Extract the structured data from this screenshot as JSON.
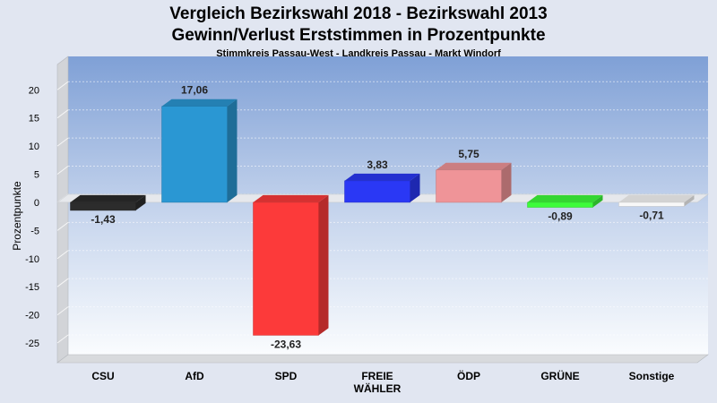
{
  "chart_data": {
    "type": "bar",
    "title": "Vergleich Bezirkswahl 2018 - Bezirkswahl 2013",
    "subtitle": "Gewinn/Verlust Erststimmen in Prozentpunkte",
    "caption": "Stimmkreis Passau-West - Landkreis Passau - Markt Windorf",
    "ylabel": "Prozentpunkte",
    "xlabel": "",
    "ylim": [
      -28.5,
      24.5
    ],
    "yticks": [
      20,
      15,
      10,
      5,
      0,
      -5,
      -10,
      -15,
      -20,
      -25
    ],
    "grid": true,
    "categories": [
      {
        "lines": [
          "CSU"
        ]
      },
      {
        "lines": [
          "AfD"
        ]
      },
      {
        "lines": [
          "SPD"
        ]
      },
      {
        "lines": [
          "FREIE",
          "WÄHLER"
        ]
      },
      {
        "lines": [
          "ÖDP"
        ]
      },
      {
        "lines": [
          "GRÜNE"
        ]
      },
      {
        "lines": [
          "Sonstige"
        ]
      }
    ],
    "values": [
      -1.43,
      17.06,
      -23.63,
      3.83,
      5.75,
      -0.89,
      -0.71
    ],
    "value_labels": [
      "-1,43",
      "17,06",
      "-23,63",
      "3,83",
      "5,75",
      "-0,89",
      "-0,71"
    ],
    "colors": [
      "#2c2c2c",
      "#2a97d3",
      "#fc3a3a",
      "#2a38f5",
      "#ef9498",
      "#3dfc3a",
      "#f8f8f8"
    ]
  }
}
